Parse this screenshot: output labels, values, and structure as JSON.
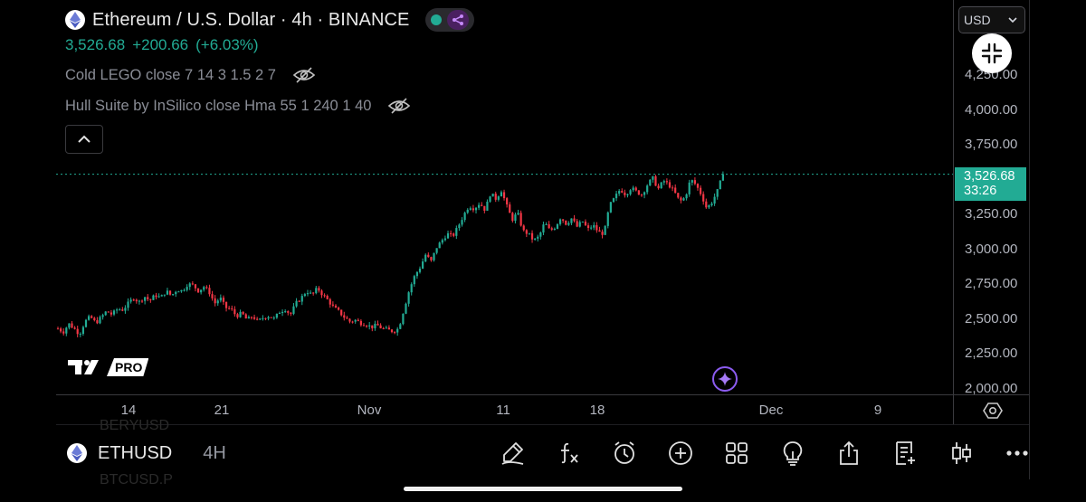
{
  "legend": {
    "title": "Ethereum / U.S. Dollar · 4h · BINANCE",
    "last": "3,526.68",
    "change": "+200.66",
    "change_pct": "(+6.03%)",
    "indicator1": "Cold LEGO close 7 14 3 1.5 2 7",
    "indicator2": "Hull Suite by InSilico close Hma 55 1 240 1 40"
  },
  "currency": "USD",
  "price_axis": {
    "ticks": [
      "4,250.00",
      "4,000.00",
      "3,750.00",
      "3,250.00",
      "3,000.00",
      "2,750.00",
      "2,500.00",
      "2,250.00",
      "2,000.00"
    ],
    "last_price": "3,526.68",
    "countdown": "33:26"
  },
  "time_axis": {
    "labels": [
      "14",
      "21",
      "Nov",
      "11",
      "18",
      "Dec",
      "9"
    ]
  },
  "logo": {
    "badge": "PRO"
  },
  "bottom": {
    "symbol": "ETHUSD",
    "interval": "4H",
    "ghost_above": "BERYUSD",
    "ghost_below": "BTCUSD.P"
  },
  "colors": {
    "up": "#22ab94",
    "down": "#f23645",
    "accent": "#9c6ade",
    "background": "#000000"
  },
  "icons": [
    "ethereum-logo-icon",
    "live-dot-icon",
    "alert-share-icon",
    "eye-off-icon",
    "chevron-up-icon",
    "chevron-down-icon",
    "exit-fullscreen-icon",
    "settings-icon",
    "spark-icon",
    "draw-pen-icon",
    "indicators-fx-icon",
    "alarm-icon",
    "add-icon",
    "layout-grid-icon",
    "ideas-bulb-icon",
    "share-icon",
    "watchlist-icon",
    "candles-icon",
    "more-icon"
  ],
  "chart_data": {
    "type": "candlestick",
    "symbol": "ETHUSD",
    "interval": "4h",
    "ylim": [
      2000,
      4400
    ],
    "path_close": [
      2420,
      2395,
      2455,
      2420,
      2380,
      2470,
      2505,
      2460,
      2500,
      2545,
      2520,
      2560,
      2555,
      2600,
      2640,
      2610,
      2650,
      2620,
      2660,
      2640,
      2690,
      2655,
      2700,
      2690,
      2740,
      2730,
      2690,
      2720,
      2680,
      2600,
      2640,
      2570,
      2560,
      2510,
      2530,
      2480,
      2510,
      2470,
      2500,
      2510,
      2490,
      2540,
      2560,
      2520,
      2600,
      2640,
      2690,
      2660,
      2710,
      2660,
      2620,
      2570,
      2540,
      2500,
      2470,
      2480,
      2460,
      2450,
      2430,
      2445,
      2420,
      2410,
      2400,
      2420,
      2560,
      2700,
      2800,
      2860,
      2950,
      2900,
      3000,
      3050,
      3100,
      3080,
      3150,
      3230,
      3300,
      3280,
      3320,
      3270,
      3390,
      3350,
      3410,
      3300,
      3200,
      3250,
      3120,
      3100,
      3050,
      3080,
      3180,
      3120,
      3150,
      3220,
      3170,
      3210,
      3150,
      3190,
      3130,
      3160,
      3110,
      3100,
      3300,
      3360,
      3420,
      3380,
      3430,
      3400,
      3380,
      3450,
      3500,
      3420,
      3480,
      3450,
      3400,
      3330,
      3360,
      3490,
      3450,
      3380,
      3280,
      3330,
      3410,
      3526.68
    ],
    "last_price": 3526.68,
    "last_change": 200.66,
    "last_change_pct": 6.03
  }
}
